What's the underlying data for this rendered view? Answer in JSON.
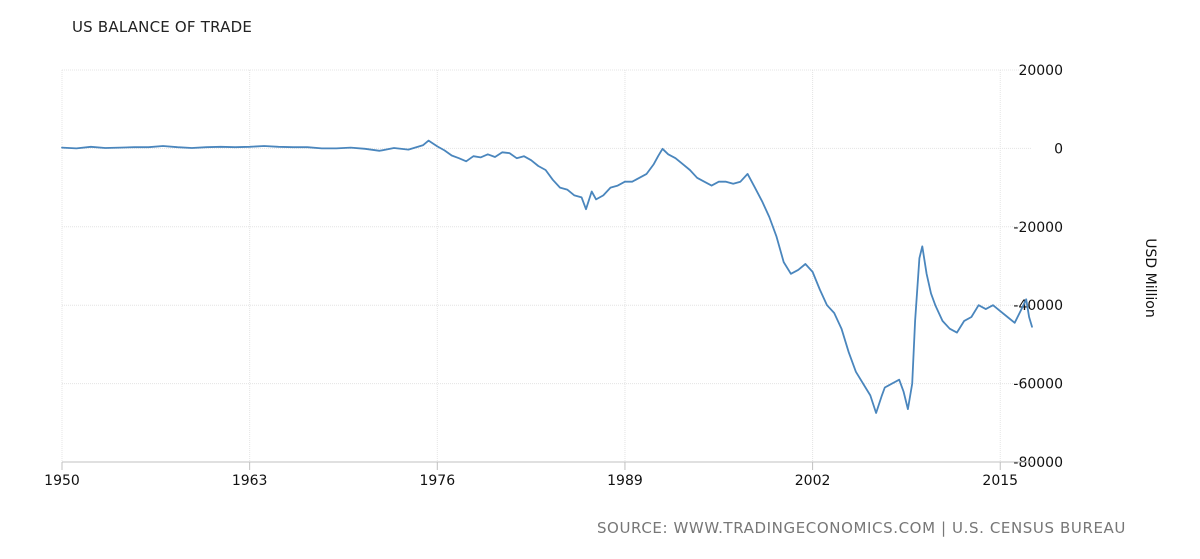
{
  "chart_data": {
    "type": "line",
    "title": "US BALANCE OF TRADE",
    "ylabel": "USD Million",
    "xlabel": "",
    "xlim": [
      1950,
      2017.2
    ],
    "ylim": [
      -80000,
      20000
    ],
    "x_ticks": [
      1950,
      1963,
      1976,
      1989,
      2002,
      2015
    ],
    "y_ticks": [
      20000,
      0,
      -20000,
      -40000,
      -60000,
      -80000
    ],
    "grid": true,
    "line_color": "#4a86bd",
    "series": [
      {
        "name": "",
        "points": [
          [
            1950.0,
            200
          ],
          [
            1951.0,
            0
          ],
          [
            1952.0,
            400
          ],
          [
            1953.0,
            100
          ],
          [
            1954.0,
            200
          ],
          [
            1955.0,
            300
          ],
          [
            1956.0,
            300
          ],
          [
            1957.0,
            600
          ],
          [
            1958.0,
            300
          ],
          [
            1959.0,
            100
          ],
          [
            1960.0,
            300
          ],
          [
            1961.0,
            400
          ],
          [
            1962.0,
            300
          ],
          [
            1963.0,
            400
          ],
          [
            1964.0,
            600
          ],
          [
            1965.0,
            400
          ],
          [
            1966.0,
            300
          ],
          [
            1967.0,
            300
          ],
          [
            1968.0,
            0
          ],
          [
            1969.0,
            0
          ],
          [
            1970.0,
            200
          ],
          [
            1971.0,
            -100
          ],
          [
            1972.0,
            -600
          ],
          [
            1973.0,
            100
          ],
          [
            1974.0,
            -300
          ],
          [
            1975.0,
            800
          ],
          [
            1975.4,
            2000
          ],
          [
            1976.0,
            500
          ],
          [
            1976.5,
            -500
          ],
          [
            1977.0,
            -1800
          ],
          [
            1977.5,
            -2500
          ],
          [
            1978.0,
            -3300
          ],
          [
            1978.5,
            -2000
          ],
          [
            1979.0,
            -2300
          ],
          [
            1979.5,
            -1500
          ],
          [
            1980.0,
            -2200
          ],
          [
            1980.5,
            -1000
          ],
          [
            1981.0,
            -1200
          ],
          [
            1981.5,
            -2500
          ],
          [
            1982.0,
            -2000
          ],
          [
            1982.5,
            -3000
          ],
          [
            1983.0,
            -4500
          ],
          [
            1983.5,
            -5500
          ],
          [
            1984.0,
            -8000
          ],
          [
            1984.5,
            -10000
          ],
          [
            1985.0,
            -10500
          ],
          [
            1985.5,
            -12000
          ],
          [
            1986.0,
            -12500
          ],
          [
            1986.3,
            -15500
          ],
          [
            1986.7,
            -11000
          ],
          [
            1987.0,
            -13000
          ],
          [
            1987.5,
            -12000
          ],
          [
            1988.0,
            -10000
          ],
          [
            1988.5,
            -9500
          ],
          [
            1989.0,
            -8500
          ],
          [
            1989.5,
            -8500
          ],
          [
            1990.0,
            -7500
          ],
          [
            1990.5,
            -6500
          ],
          [
            1991.0,
            -4000
          ],
          [
            1991.3,
            -2000
          ],
          [
            1991.6,
            -100
          ],
          [
            1992.0,
            -1500
          ],
          [
            1992.5,
            -2500
          ],
          [
            1993.0,
            -4000
          ],
          [
            1993.5,
            -5500
          ],
          [
            1994.0,
            -7500
          ],
          [
            1994.5,
            -8500
          ],
          [
            1995.0,
            -9500
          ],
          [
            1995.5,
            -8500
          ],
          [
            1996.0,
            -8500
          ],
          [
            1996.5,
            -9000
          ],
          [
            1997.0,
            -8500
          ],
          [
            1997.5,
            -6500
          ],
          [
            1998.0,
            -10000
          ],
          [
            1998.5,
            -13500
          ],
          [
            1999.0,
            -17500
          ],
          [
            1999.5,
            -22500
          ],
          [
            2000.0,
            -29000
          ],
          [
            2000.5,
            -32000
          ],
          [
            2001.0,
            -31000
          ],
          [
            2001.5,
            -29500
          ],
          [
            2002.0,
            -31500
          ],
          [
            2002.5,
            -36000
          ],
          [
            2003.0,
            -40000
          ],
          [
            2003.5,
            -42000
          ],
          [
            2004.0,
            -46000
          ],
          [
            2004.5,
            -52000
          ],
          [
            2005.0,
            -57000
          ],
          [
            2005.5,
            -60000
          ],
          [
            2006.0,
            -63000
          ],
          [
            2006.4,
            -67500
          ],
          [
            2006.8,
            -63000
          ],
          [
            2007.0,
            -61000
          ],
          [
            2007.5,
            -60000
          ],
          [
            2008.0,
            -59000
          ],
          [
            2008.3,
            -62000
          ],
          [
            2008.6,
            -66500
          ],
          [
            2008.9,
            -60000
          ],
          [
            2009.1,
            -44000
          ],
          [
            2009.4,
            -28000
          ],
          [
            2009.6,
            -25000
          ],
          [
            2009.9,
            -32000
          ],
          [
            2010.2,
            -37000
          ],
          [
            2010.5,
            -40000
          ],
          [
            2011.0,
            -44000
          ],
          [
            2011.5,
            -46000
          ],
          [
            2012.0,
            -47000
          ],
          [
            2012.5,
            -44000
          ],
          [
            2013.0,
            -43000
          ],
          [
            2013.5,
            -40000
          ],
          [
            2014.0,
            -41000
          ],
          [
            2014.5,
            -40000
          ],
          [
            2015.0,
            -41500
          ],
          [
            2015.5,
            -43000
          ],
          [
            2016.0,
            -44500
          ],
          [
            2016.4,
            -41500
          ],
          [
            2016.8,
            -38500
          ],
          [
            2017.0,
            -43000
          ],
          [
            2017.2,
            -45500
          ]
        ]
      }
    ]
  },
  "source": "SOURCE: WWW.TRADINGECONOMICS.COM | U.S. CENSUS BUREAU"
}
